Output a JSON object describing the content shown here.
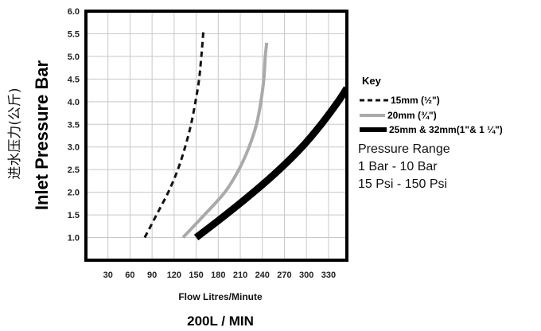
{
  "chart_data": {
    "type": "line",
    "title": "",
    "xlabel": "Flow Litres/Minute",
    "ylabel": "Inlet Pressure Bar",
    "ylabel_cn": "进水压力(公斤)",
    "footer": "200L / MIN",
    "xlim": [
      0,
      355
    ],
    "ylim": [
      0.5,
      6.0
    ],
    "x_ticks": [
      "30",
      "60",
      "90",
      "120",
      "150",
      "180",
      "210",
      "240",
      "270",
      "300",
      "330"
    ],
    "y_ticks": [
      "1.0",
      "1.5",
      "2.0",
      "2.5",
      "3.0",
      "3.5",
      "4.0",
      "4.5",
      "5.0",
      "5.5",
      "6.0"
    ],
    "grid": true,
    "legend": {
      "title": "Key",
      "placement": "right",
      "entries": [
        "15mm (½\")",
        "20mm (¾\")",
        "25mm & 32mm(1\"& 1 ¼\")"
      ]
    },
    "annotation": {
      "title": "Pressure Range",
      "lines": [
        "1 Bar - 10 Bar",
        "15 Psi - 150 Psi"
      ]
    },
    "series": [
      {
        "name": "15mm (½\")",
        "color": "#111111",
        "style": "dashed",
        "x": [
          80,
          96,
          112,
          125,
          135,
          143,
          149,
          154,
          157,
          160
        ],
        "y": [
          1.0,
          1.5,
          2.0,
          2.5,
          3.0,
          3.5,
          4.0,
          4.5,
          5.0,
          5.6
        ]
      },
      {
        "name": "20mm (¾\")",
        "color": "#aaaaaa",
        "style": "solid",
        "x": [
          132,
          161,
          189,
          208,
          222,
          232,
          238,
          242,
          244,
          246
        ],
        "y": [
          1.0,
          1.5,
          2.0,
          2.5,
          3.0,
          3.5,
          4.0,
          4.5,
          5.0,
          5.3
        ]
      },
      {
        "name": "25mm & 32mm(1\"& 1 ¼\")",
        "color": "#000000",
        "style": "thick",
        "x": [
          150,
          190,
          228,
          263,
          294,
          320,
          343,
          355
        ],
        "y": [
          1.0,
          1.5,
          2.0,
          2.5,
          3.0,
          3.5,
          4.0,
          4.3
        ]
      }
    ]
  }
}
